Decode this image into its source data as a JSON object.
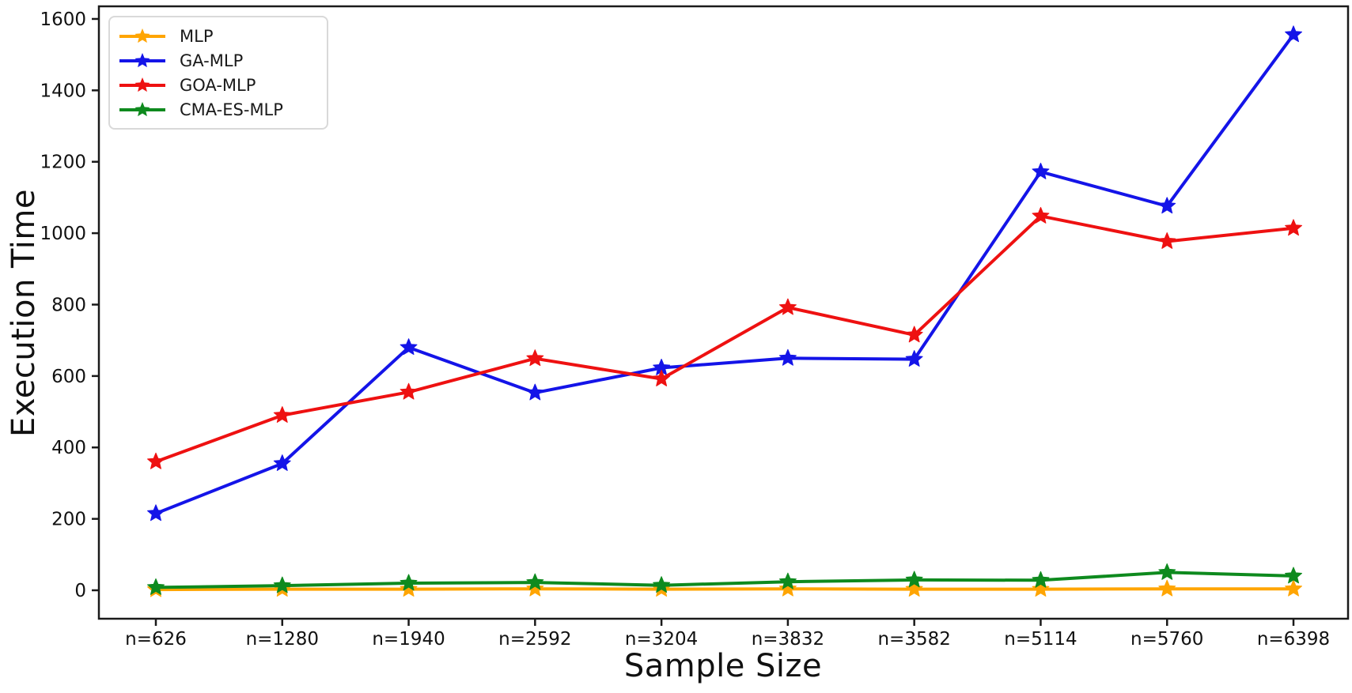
{
  "figure": {
    "background": "#ffffff",
    "text_color": "#111111",
    "spine_color": "#1a1a1a"
  },
  "chart_data": {
    "type": "line",
    "title": "",
    "xlabel": "Sample Size",
    "ylabel": "Execution Time",
    "categories": [
      "n=626",
      "n=1280",
      "n=1940",
      "n=2592",
      "n=3204",
      "n=3832",
      "n=3582",
      "n=5114",
      "n=5760",
      "n=6398"
    ],
    "series": [
      {
        "name": "MLP",
        "color": "#FFA502",
        "marker": "star",
        "values": [
          2,
          3,
          3,
          4,
          3,
          4,
          3,
          3,
          4,
          4
        ]
      },
      {
        "name": "GA-MLP",
        "color": "#1414E8",
        "marker": "star",
        "values": [
          215,
          355,
          680,
          553,
          623,
          650,
          647,
          1172,
          1076,
          1556
        ]
      },
      {
        "name": "GOA-MLP",
        "color": "#EE1111",
        "marker": "star",
        "values": [
          360,
          490,
          555,
          649,
          592,
          792,
          715,
          1048,
          977,
          1014
        ]
      },
      {
        "name": "CMA-ES-MLP",
        "color": "#0E8A1E",
        "marker": "star",
        "values": [
          8,
          13,
          20,
          22,
          14,
          24,
          29,
          28,
          50,
          40
        ]
      }
    ],
    "yticks": [
      0,
      200,
      400,
      600,
      800,
      1000,
      1200,
      1400,
      1600
    ],
    "ylim": [
      -80,
      1640
    ],
    "grid": false,
    "legend_position": "upper-left"
  }
}
